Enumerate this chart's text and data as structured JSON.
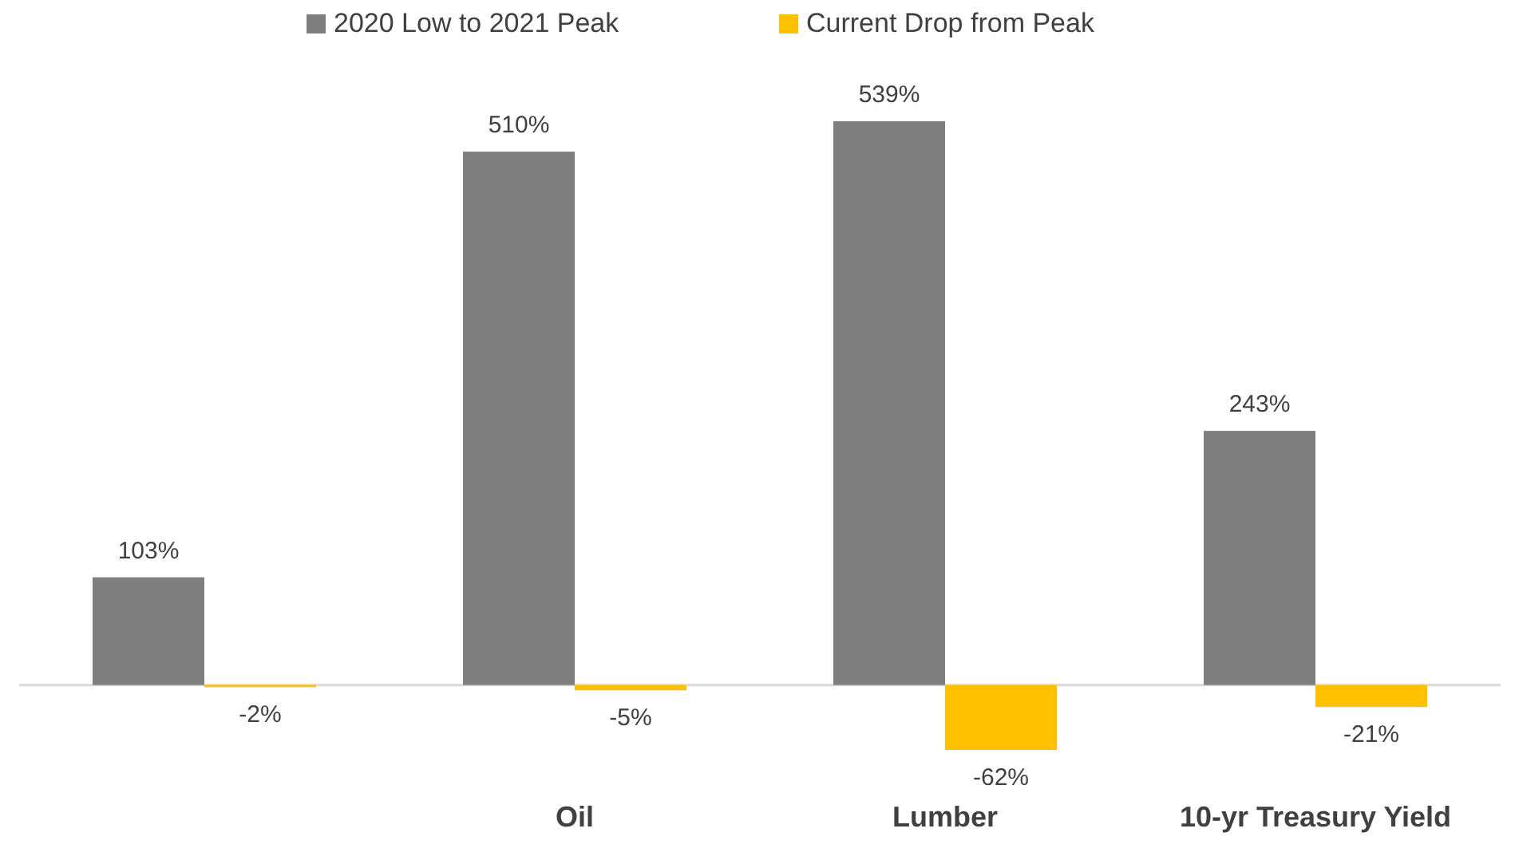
{
  "chart_data": {
    "type": "bar",
    "categories": [
      null,
      "Oil",
      "Lumber",
      "10-yr Treasury Yield"
    ],
    "series": [
      {
        "name": "2020 Low to 2021 Peak",
        "color": "#7f7f7f",
        "values": [
          103,
          510,
          539,
          243
        ],
        "value_labels": [
          "103%",
          "510%",
          "539%",
          "243%"
        ]
      },
      {
        "name": "Current Drop from Peak",
        "color": "#ffc000",
        "values": [
          -2,
          -5,
          -62,
          -21
        ],
        "value_labels": [
          "-2%",
          "-5%",
          "-62%",
          "-21%"
        ]
      }
    ],
    "legend": "top"
  }
}
